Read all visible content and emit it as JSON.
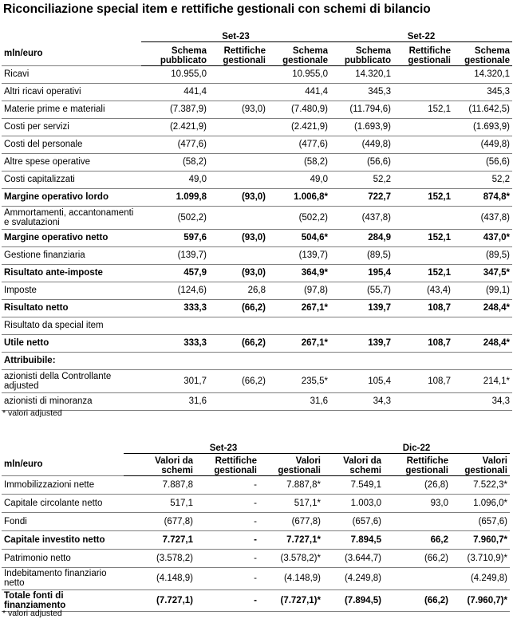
{
  "title": "Riconciliazione special item e rettifiche gestionali con schemi di bilancio",
  "income": {
    "unit": "mln/euro",
    "group_left": "Set-23",
    "group_right": "Set-22",
    "columns": [
      "Schema pubblicato",
      "Rettifiche gestionali",
      "Schema gestionale",
      "Schema pubblicato",
      "Rettifiche gestionali",
      "Schema gestionale"
    ],
    "rows": [
      {
        "label": "Ricavi",
        "bold": false,
        "v": [
          "10.955,0",
          "",
          "10.955,0",
          "14.320,1",
          "",
          "14.320,1"
        ]
      },
      {
        "label": "Altri ricavi operativi",
        "bold": false,
        "v": [
          "441,4",
          "",
          "441,4",
          "345,3",
          "",
          "345,3"
        ]
      },
      {
        "label": "Materie prime e materiali",
        "bold": false,
        "v": [
          "(7.387,9)",
          "(93,0)",
          "(7.480,9)",
          "(11.794,6)",
          "152,1",
          "(11.642,5)"
        ]
      },
      {
        "label": "Costi per servizi",
        "bold": false,
        "v": [
          "(2.421,9)",
          "",
          "(2.421,9)",
          "(1.693,9)",
          "",
          "(1.693,9)"
        ]
      },
      {
        "label": "Costi del personale",
        "bold": false,
        "v": [
          "(477,6)",
          "",
          "(477,6)",
          "(449,8)",
          "",
          "(449,8)"
        ]
      },
      {
        "label": "Altre spese operative",
        "bold": false,
        "v": [
          "(58,2)",
          "",
          "(58,2)",
          "(56,6)",
          "",
          "(56,6)"
        ]
      },
      {
        "label": "Costi capitalizzati",
        "bold": false,
        "v": [
          "49,0",
          "",
          "49,0",
          "52,2",
          "",
          "52,2"
        ]
      },
      {
        "label": "Margine operativo lordo",
        "bold": true,
        "v": [
          "1.099,8",
          "(93,0)",
          "1.006,8*",
          "722,7",
          "152,1",
          "874,8*"
        ]
      },
      {
        "label": "Ammortamenti, accantonamenti e svalutazioni",
        "bold": false,
        "v": [
          "(502,2)",
          "",
          "(502,2)",
          "(437,8)",
          "",
          "(437,8)"
        ]
      },
      {
        "label": "Margine operativo netto",
        "bold": true,
        "v": [
          "597,6",
          "(93,0)",
          "504,6*",
          "284,9",
          "152,1",
          "437,0*"
        ]
      },
      {
        "label": "Gestione finanziaria",
        "bold": false,
        "v": [
          "(139,7)",
          "",
          "(139,7)",
          "(89,5)",
          "",
          "(89,5)"
        ]
      },
      {
        "label": "Risultato ante-imposte",
        "bold": true,
        "v": [
          "457,9",
          "(93,0)",
          "364,9*",
          "195,4",
          "152,1",
          "347,5*"
        ]
      },
      {
        "label": "Imposte",
        "bold": false,
        "v": [
          "(124,6)",
          "26,8",
          "(97,8)",
          "(55,7)",
          "(43,4)",
          "(99,1)"
        ]
      },
      {
        "label": "Risultato netto",
        "bold": true,
        "v": [
          "333,3",
          "(66,2)",
          "267,1*",
          "139,7",
          "108,7",
          "248,4*"
        ]
      },
      {
        "label": "Risultato da special item",
        "bold": false,
        "v": [
          "",
          "",
          "",
          "",
          "",
          ""
        ]
      },
      {
        "label": "Utile netto",
        "bold": true,
        "v": [
          "333,3",
          "(66,2)",
          "267,1*",
          "139,7",
          "108,7",
          "248,4*"
        ]
      },
      {
        "label": "Attribuibile:",
        "bold": true,
        "v": [
          "",
          "",
          "",
          "",
          "",
          ""
        ]
      },
      {
        "label": "azionisti della Controllante adjusted",
        "bold": false,
        "v": [
          "301,7",
          "(66,2)",
          "235,5*",
          "105,4",
          "108,7",
          "214,1*"
        ]
      },
      {
        "label": "azionisti di minoranza",
        "bold": false,
        "v": [
          "31,6",
          "",
          "31,6",
          "34,3",
          "",
          "34,3"
        ]
      }
    ],
    "note": "* valori adjusted"
  },
  "balance": {
    "unit": "mln/euro",
    "group_left": "Set-23",
    "group_right": "Dic-22",
    "columns": [
      "Valori da schemi",
      "Rettifiche gestionali",
      "Valori gestionali",
      "Valori da schemi",
      "Rettifiche gestionali",
      "Valori gestionali"
    ],
    "rows": [
      {
        "label": "Immobilizzazioni nette",
        "bold": false,
        "v": [
          "7.887,8",
          "-",
          "7.887,8*",
          "7.549,1",
          "(26,8)",
          "7.522,3*"
        ]
      },
      {
        "label": "Capitale circolante netto",
        "bold": false,
        "v": [
          "517,1",
          "-",
          "517,1*",
          "1.003,0",
          "93,0",
          "1.096,0*"
        ]
      },
      {
        "label": "Fondi",
        "bold": false,
        "v": [
          "(677,8)",
          "-",
          "(677,8)",
          "(657,6)",
          "",
          "(657,6)"
        ]
      },
      {
        "label": "Capitale investito netto",
        "bold": true,
        "v": [
          "7.727,1",
          "-",
          "7.727,1*",
          "7.894,5",
          "66,2",
          "7.960,7*"
        ]
      },
      {
        "label": "Patrimonio netto",
        "bold": false,
        "v": [
          "(3.578,2)",
          "-",
          "(3.578,2)*",
          "(3.644,7)",
          "(66,2)",
          "(3.710,9)*"
        ]
      },
      {
        "label": "Indebitamento finanziario netto",
        "bold": false,
        "v": [
          "(4.148,9)",
          "-",
          "(4.148,9)",
          "(4.249,8)",
          "",
          "(4.249,8)"
        ]
      },
      {
        "label": "Totale fonti di finanziamento",
        "bold": true,
        "v": [
          "(7.727,1)",
          "-",
          "(7.727,1)*",
          "(7.894,5)",
          "(66,2)",
          "(7.960,7)*"
        ]
      }
    ],
    "note": "* valori adjusted"
  }
}
